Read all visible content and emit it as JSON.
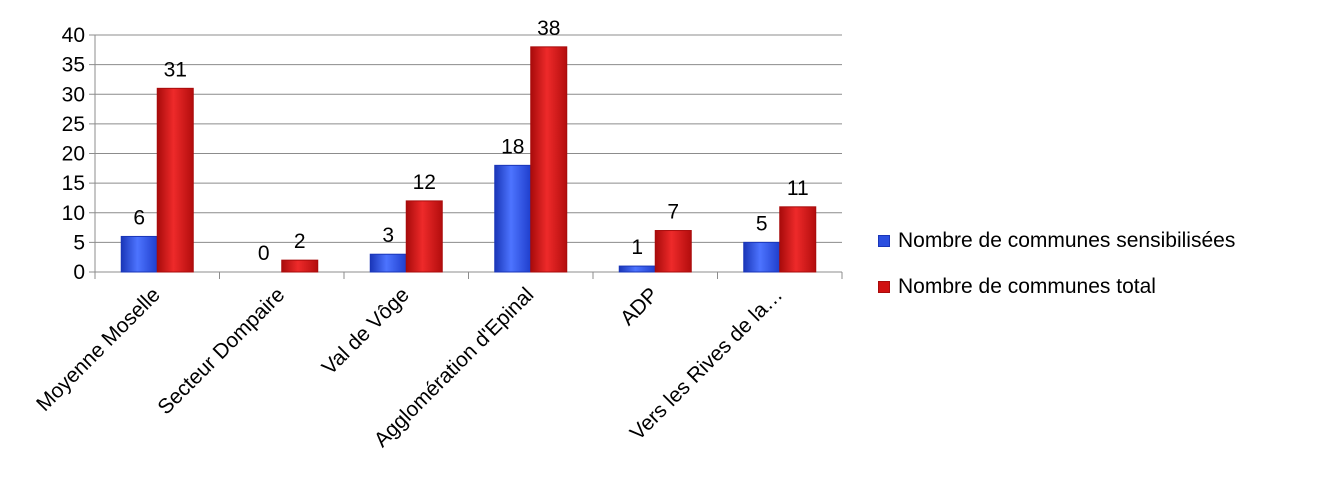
{
  "chart_data": {
    "type": "bar",
    "categories": [
      "Moyenne Moselle",
      "Secteur Dompaire",
      "Val de Vôge",
      "Agglomération d'Epinal",
      "ADP",
      "Vers les Rives de la…"
    ],
    "series": [
      {
        "name": "Nombre de communes sensibilisées",
        "values": [
          6,
          0,
          3,
          18,
          1,
          5
        ],
        "color": "#2B4FE0"
      },
      {
        "name": "Nombre de communes total",
        "values": [
          31,
          2,
          12,
          38,
          7,
          11
        ],
        "color": "#D01010"
      }
    ],
    "y_ticks": [
      0,
      5,
      10,
      15,
      20,
      25,
      30,
      35,
      40
    ],
    "ylim": [
      0,
      40
    ],
    "grid": true,
    "legend_position": "right",
    "data_labels": true
  }
}
